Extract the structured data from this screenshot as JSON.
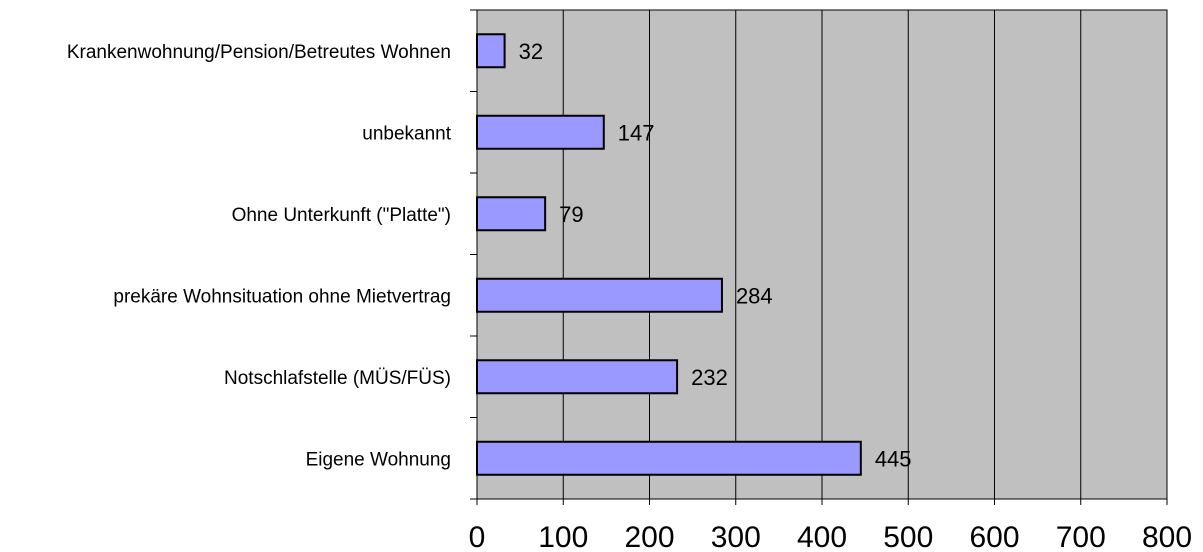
{
  "chart_data": {
    "type": "bar",
    "orientation": "horizontal",
    "categories": [
      "Eigene Wohnung",
      "Notschlafstelle (MÜS/FÜS)",
      "prekäre Wohnsituation ohne Mietvertrag",
      "Ohne Unterkunft (\"Platte\")",
      "unbekannt",
      "Krankenwohnung/Pension/Betreutes Wohnen"
    ],
    "values": [
      445,
      232,
      284,
      79,
      147,
      32
    ],
    "data_labels": [
      "445",
      "232",
      "284",
      "79",
      "147",
      "32"
    ],
    "x_ticks": [
      "0",
      "100",
      "200",
      "300",
      "400",
      "500",
      "600",
      "700",
      "800"
    ],
    "xlim": [
      0,
      800
    ],
    "title": "",
    "xlabel": "",
    "ylabel": "",
    "grid": "vertical",
    "legend": "none",
    "colors": {
      "bar_fill": "#9999ff",
      "bar_stroke": "#000000",
      "plot_background": "#c0c0c0",
      "gridline": "#000000"
    }
  }
}
